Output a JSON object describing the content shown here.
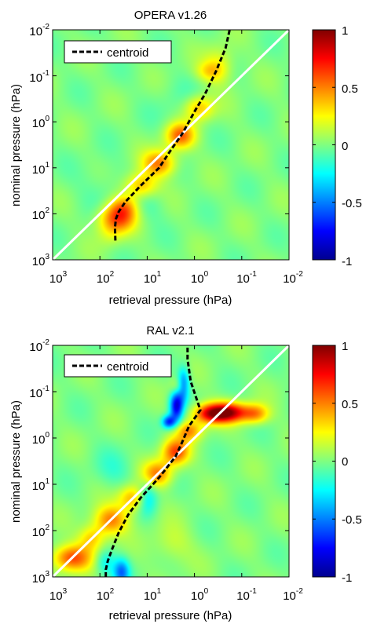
{
  "colors": {
    "background": "#ffffff",
    "diagonal_line": "#ffffff",
    "centroid_line": "#000000",
    "field_zero": "#8ddc8a"
  },
  "colormap": "jet",
  "colorbar": {
    "ticks": [
      1,
      0.5,
      0,
      -0.5,
      -1
    ],
    "tick_labels": [
      "1",
      "0.5",
      "0",
      "-0.5",
      "-1"
    ]
  },
  "chart_data": [
    {
      "type": "heatmap",
      "title": "OPERA v1.26",
      "xlabel": "retrieval pressure (hPa)",
      "ylabel": "nominal pressure (hPa)",
      "x_scale": "log",
      "x_reversed": true,
      "x_range": [
        1000,
        0.01
      ],
      "y_scale": "log",
      "y_reversed": true,
      "y_range": [
        1000,
        0.01
      ],
      "x_tick_labels": [
        {
          "base": "10",
          "exp": "3"
        },
        {
          "base": "10",
          "exp": "2"
        },
        {
          "base": "10",
          "exp": "1"
        },
        {
          "base": "10",
          "exp": "0"
        },
        {
          "base": "10",
          "exp": "-1"
        },
        {
          "base": "10",
          "exp": "-2"
        }
      ],
      "y_tick_labels": [
        {
          "base": "10",
          "exp": "-2"
        },
        {
          "base": "10",
          "exp": "-1"
        },
        {
          "base": "10",
          "exp": "0"
        },
        {
          "base": "10",
          "exp": "1"
        },
        {
          "base": "10",
          "exp": "2"
        },
        {
          "base": "10",
          "exp": "3"
        }
      ],
      "value_range": [
        -1,
        1
      ],
      "legend": {
        "position": "top-left",
        "entries": [
          {
            "label": "centroid",
            "style": "dashed",
            "color": "#000000"
          }
        ]
      },
      "diagonal": {
        "from": [
          1000,
          1000
        ],
        "to": [
          0.01,
          0.01
        ]
      },
      "centroid": {
        "x": [
          47,
          48,
          46,
          40,
          29,
          14,
          5.6,
          3.2,
          1.8,
          0.95,
          0.6,
          0.35,
          0.22,
          0.18
        ],
        "y": [
          380,
          200,
          130,
          90,
          55,
          25,
          10,
          4.2,
          1.8,
          0.55,
          0.25,
          0.08,
          0.025,
          0.01
        ]
      },
      "field_blobs": [
        {
          "x": 45,
          "y": 130,
          "sx": 0.28,
          "sy": 0.22,
          "amp": 0.55
        },
        {
          "x": 30,
          "y": 70,
          "sx": 0.22,
          "sy": 0.2,
          "amp": 0.4
        },
        {
          "x": 14,
          "y": 25,
          "sx": 0.25,
          "sy": 0.2,
          "amp": 0.45
        },
        {
          "x": 5.5,
          "y": 8,
          "sx": 0.25,
          "sy": 0.2,
          "amp": 0.5
        },
        {
          "x": 2,
          "y": 2,
          "sx": 0.22,
          "sy": 0.2,
          "amp": 0.55
        },
        {
          "x": 0.8,
          "y": 0.5,
          "sx": 0.22,
          "sy": 0.2,
          "amp": 0.4
        },
        {
          "x": 0.3,
          "y": 0.06,
          "sx": 0.22,
          "sy": 0.28,
          "amp": 0.25
        },
        {
          "x": 0.5,
          "y": 0.08,
          "sx": 0.2,
          "sy": 0.15,
          "amp": 0.22
        },
        {
          "x": 60,
          "y": 300,
          "sx": 0.2,
          "sy": 0.2,
          "amp": 0.12
        },
        {
          "x": 12,
          "y": 60,
          "sx": 0.3,
          "sy": 0.3,
          "amp": -0.12
        },
        {
          "x": 80,
          "y": 30,
          "sx": 0.4,
          "sy": 0.4,
          "amp": -0.08
        },
        {
          "x": 2,
          "y": 0.4,
          "sx": 0.4,
          "sy": 0.4,
          "amp": -0.06
        }
      ]
    },
    {
      "type": "heatmap",
      "title": "RAL v2.1",
      "xlabel": "retrieval pressure (hPa)",
      "ylabel": "nominal pressure (hPa)",
      "x_scale": "log",
      "x_reversed": true,
      "x_range": [
        1000,
        0.01
      ],
      "y_scale": "log",
      "y_reversed": true,
      "y_range": [
        1000,
        0.01
      ],
      "x_tick_labels": [
        {
          "base": "10",
          "exp": "3"
        },
        {
          "base": "10",
          "exp": "2"
        },
        {
          "base": "10",
          "exp": "1"
        },
        {
          "base": "10",
          "exp": "0"
        },
        {
          "base": "10",
          "exp": "-1"
        },
        {
          "base": "10",
          "exp": "-2"
        }
      ],
      "y_tick_labels": [
        {
          "base": "10",
          "exp": "-2"
        },
        {
          "base": "10",
          "exp": "-1"
        },
        {
          "base": "10",
          "exp": "0"
        },
        {
          "base": "10",
          "exp": "1"
        },
        {
          "base": "10",
          "exp": "2"
        },
        {
          "base": "10",
          "exp": "3"
        }
      ],
      "value_range": [
        -1,
        1
      ],
      "legend": {
        "position": "top-left",
        "entries": [
          {
            "label": "centroid",
            "style": "dashed",
            "color": "#000000"
          }
        ]
      },
      "diagonal": {
        "from": [
          1000,
          1000
        ],
        "to": [
          0.01,
          0.01
        ]
      },
      "centroid": {
        "x": [
          75,
          75,
          68,
          55,
          40,
          25,
          14,
          5.5,
          2.5,
          1.8,
          1.3,
          0.75,
          1.2,
          1.4,
          1.4
        ],
        "y": [
          1000,
          700,
          450,
          250,
          110,
          45,
          20,
          7,
          2.5,
          1.2,
          0.55,
          0.25,
          0.06,
          0.02,
          0.01
        ]
      },
      "field_blobs": [
        {
          "x": 400,
          "y": 400,
          "sx": 0.3,
          "sy": 0.2,
          "amp": 0.6
        },
        {
          "x": 150,
          "y": 150,
          "sx": 0.2,
          "sy": 0.2,
          "amp": 0.35
        },
        {
          "x": 60,
          "y": 60,
          "sx": 0.25,
          "sy": 0.22,
          "amp": 0.5
        },
        {
          "x": 20,
          "y": 20,
          "sx": 0.22,
          "sy": 0.2,
          "amp": 0.45
        },
        {
          "x": 6,
          "y": 6,
          "sx": 0.22,
          "sy": 0.2,
          "amp": 0.5
        },
        {
          "x": 2.5,
          "y": 2,
          "sx": 0.2,
          "sy": 0.2,
          "amp": 0.6
        },
        {
          "x": 1.3,
          "y": 0.7,
          "sx": 0.2,
          "sy": 0.15,
          "amp": 0.45
        },
        {
          "x": 0.2,
          "y": 0.28,
          "sx": 0.3,
          "sy": 0.15,
          "amp": 0.9
        },
        {
          "x": 0.5,
          "y": 0.3,
          "sx": 0.25,
          "sy": 0.15,
          "amp": 0.55
        },
        {
          "x": 0.05,
          "y": 0.3,
          "sx": 0.2,
          "sy": 0.15,
          "amp": 0.45
        },
        {
          "x": 2.4,
          "y": 0.2,
          "sx": 0.1,
          "sy": 0.25,
          "amp": -0.8
        },
        {
          "x": 3.5,
          "y": 0.45,
          "sx": 0.1,
          "sy": 0.1,
          "amp": -0.65
        },
        {
          "x": 1.7,
          "y": 0.07,
          "sx": 0.09,
          "sy": 0.25,
          "amp": -0.55
        },
        {
          "x": 2.2,
          "y": 0.08,
          "sx": 0.12,
          "sy": 0.15,
          "amp": 0.3
        },
        {
          "x": 10,
          "y": 20,
          "sx": 0.15,
          "sy": 0.25,
          "amp": -0.35
        },
        {
          "x": 35,
          "y": 800,
          "sx": 0.12,
          "sy": 0.2,
          "amp": -0.5
        },
        {
          "x": 80,
          "y": 500,
          "sx": 0.15,
          "sy": 0.2,
          "amp": -0.25
        },
        {
          "x": 3,
          "y": 200,
          "sx": 0.3,
          "sy": 0.3,
          "amp": 0.15
        },
        {
          "x": 50,
          "y": 5,
          "sx": 0.3,
          "sy": 0.3,
          "amp": -0.12
        }
      ]
    }
  ]
}
